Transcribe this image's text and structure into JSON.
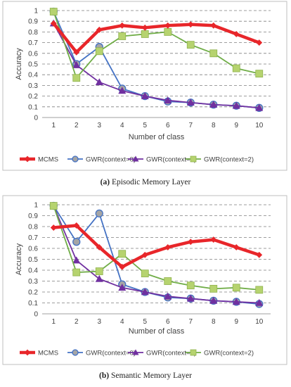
{
  "chart_data": [
    {
      "type": "line",
      "caption_letter": "(a)",
      "caption_text": " Episodic Memory Layer",
      "xlabel": "Number of class",
      "ylabel": "Accuracy",
      "x": [
        1,
        2,
        3,
        4,
        5,
        6,
        7,
        8,
        9,
        10
      ],
      "ylim": [
        0,
        1
      ],
      "yticks": [
        "0",
        "0.1",
        "0.2",
        "0.3",
        "0.4",
        "0.5",
        "0.6",
        "0.7",
        "0.8",
        "0.9",
        "1"
      ],
      "grid": true,
      "legend": "bottom",
      "series": [
        {
          "name": "MCMS",
          "color": "#e8262a",
          "marker": "diamond",
          "width": 4.5,
          "values": [
            0.88,
            0.61,
            0.82,
            0.86,
            0.84,
            0.86,
            0.87,
            0.86,
            0.78,
            0.7
          ]
        },
        {
          "name": "GWR(context=0)",
          "color": "#4472c4",
          "marker": "circle",
          "width": 1.8,
          "values": [
            0.99,
            0.5,
            0.66,
            0.27,
            0.2,
            0.15,
            0.14,
            0.12,
            0.11,
            0.09
          ]
        },
        {
          "name": "GWR(context=1)",
          "color": "#7030a0",
          "marker": "triangle",
          "width": 1.8,
          "values": [
            0.88,
            0.49,
            0.33,
            0.25,
            0.2,
            0.16,
            0.14,
            0.12,
            0.11,
            0.09
          ]
        },
        {
          "name": "GWR(context=2)",
          "color": "#70ad47",
          "marker": "square",
          "width": 1.8,
          "values": [
            0.99,
            0.37,
            0.62,
            0.76,
            0.78,
            0.8,
            0.68,
            0.6,
            0.46,
            0.41
          ]
        }
      ]
    },
    {
      "type": "line",
      "caption_letter": "(b)",
      "caption_text": " Semantic Memory Layer",
      "xlabel": "Number of class",
      "ylabel": "Accuracy",
      "x": [
        1,
        2,
        3,
        4,
        5,
        6,
        7,
        8,
        9,
        10
      ],
      "ylim": [
        0,
        1
      ],
      "yticks": [
        "0",
        "0.1",
        "0.2",
        "0.3",
        "0.4",
        "0.5",
        "0.6",
        "0.7",
        "0.8",
        "0.9",
        "1"
      ],
      "grid": true,
      "legend": "bottom",
      "series": [
        {
          "name": "MCMS",
          "color": "#e8262a",
          "marker": "diamond",
          "width": 4.5,
          "values": [
            0.79,
            0.81,
            0.61,
            0.43,
            0.54,
            0.61,
            0.66,
            0.68,
            0.61,
            0.54
          ]
        },
        {
          "name": "GWR(context=0)",
          "color": "#4472c4",
          "marker": "circle",
          "width": 1.8,
          "values": [
            0.99,
            0.66,
            0.92,
            0.27,
            0.2,
            0.15,
            0.14,
            0.12,
            0.11,
            0.09
          ]
        },
        {
          "name": "GWR(context=1)",
          "color": "#7030a0",
          "marker": "triangle",
          "width": 1.8,
          "values": [
            0.99,
            0.49,
            0.32,
            0.24,
            0.2,
            0.16,
            0.14,
            0.12,
            0.11,
            0.1
          ]
        },
        {
          "name": "GWR(context=2)",
          "color": "#70ad47",
          "marker": "square",
          "width": 1.8,
          "values": [
            0.99,
            0.38,
            0.39,
            0.55,
            0.37,
            0.3,
            0.26,
            0.23,
            0.24,
            0.22
          ]
        }
      ]
    }
  ]
}
